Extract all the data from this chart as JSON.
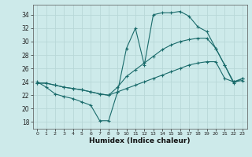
{
  "xlabel": "Humidex (Indice chaleur)",
  "xlim": [
    -0.5,
    23.5
  ],
  "ylim": [
    17,
    35.5
  ],
  "yticks": [
    18,
    20,
    22,
    24,
    26,
    28,
    30,
    32,
    34
  ],
  "xticks": [
    0,
    1,
    2,
    3,
    4,
    5,
    6,
    7,
    8,
    9,
    10,
    11,
    12,
    13,
    14,
    15,
    16,
    17,
    18,
    19,
    20,
    21,
    22,
    23
  ],
  "bg_color": "#cdeaea",
  "line_color": "#1a6b6b",
  "grid_color": "#b8d8d8",
  "line1_x": [
    0,
    1,
    2,
    3,
    4,
    5,
    6,
    7,
    8,
    9,
    10,
    11,
    12,
    13,
    14,
    15,
    16,
    17,
    18,
    19,
    20,
    21,
    22,
    23
  ],
  "line1_y": [
    24.0,
    23.2,
    22.2,
    21.8,
    21.5,
    21.0,
    20.5,
    18.2,
    18.2,
    22.5,
    29.0,
    32.0,
    26.5,
    34.0,
    34.3,
    34.3,
    34.5,
    33.8,
    32.2,
    31.5,
    29.0,
    26.5,
    23.8,
    24.5
  ],
  "line2_x": [
    0,
    1,
    2,
    3,
    4,
    5,
    6,
    7,
    8,
    9,
    10,
    11,
    12,
    13,
    14,
    15,
    16,
    17,
    18,
    19,
    20,
    21,
    22,
    23
  ],
  "line2_y": [
    23.8,
    23.8,
    23.5,
    23.2,
    23.0,
    22.8,
    22.5,
    22.2,
    22.0,
    23.2,
    24.8,
    25.8,
    26.8,
    27.8,
    28.8,
    29.5,
    30.0,
    30.3,
    30.5,
    30.5,
    29.0,
    26.5,
    24.0,
    24.5
  ],
  "line3_x": [
    0,
    1,
    2,
    3,
    4,
    5,
    6,
    7,
    8,
    9,
    10,
    11,
    12,
    13,
    14,
    15,
    16,
    17,
    18,
    19,
    20,
    21,
    22,
    23
  ],
  "line3_y": [
    23.8,
    23.8,
    23.5,
    23.2,
    23.0,
    22.8,
    22.5,
    22.2,
    22.0,
    22.5,
    23.0,
    23.5,
    24.0,
    24.5,
    25.0,
    25.5,
    26.0,
    26.5,
    26.8,
    27.0,
    27.0,
    24.5,
    24.0,
    24.2
  ]
}
